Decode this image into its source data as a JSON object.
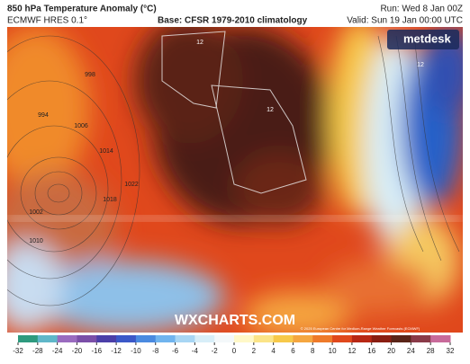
{
  "header": {
    "title": "850 hPa Temperature Anomaly (°C)",
    "model": "ECMWF HRES 0.1°",
    "base": "Base: CFSR 1979-2010 climatology",
    "run": "Run: Wed 8 Jan 00Z",
    "valid": "Valid: Sun 19 Jan 00:00 UTC"
  },
  "logo": "metdesk",
  "watermark": "WXCHARTS.COM",
  "copyright": "© 2025 European Centre for Medium-Range Weather Forecasts (ECMWF)",
  "isobar_labels": [
    "1002",
    "1010",
    "1018",
    "1022",
    "1014",
    "994",
    "998",
    "1006",
    "12",
    "12",
    "12"
  ],
  "colorbar": {
    "ticks": [
      -32,
      -28,
      -24,
      -20,
      -16,
      -12,
      -10,
      -8,
      -6,
      -4,
      -2,
      0,
      2,
      4,
      6,
      8,
      10,
      12,
      16,
      20,
      24,
      28,
      32
    ]
  }
}
